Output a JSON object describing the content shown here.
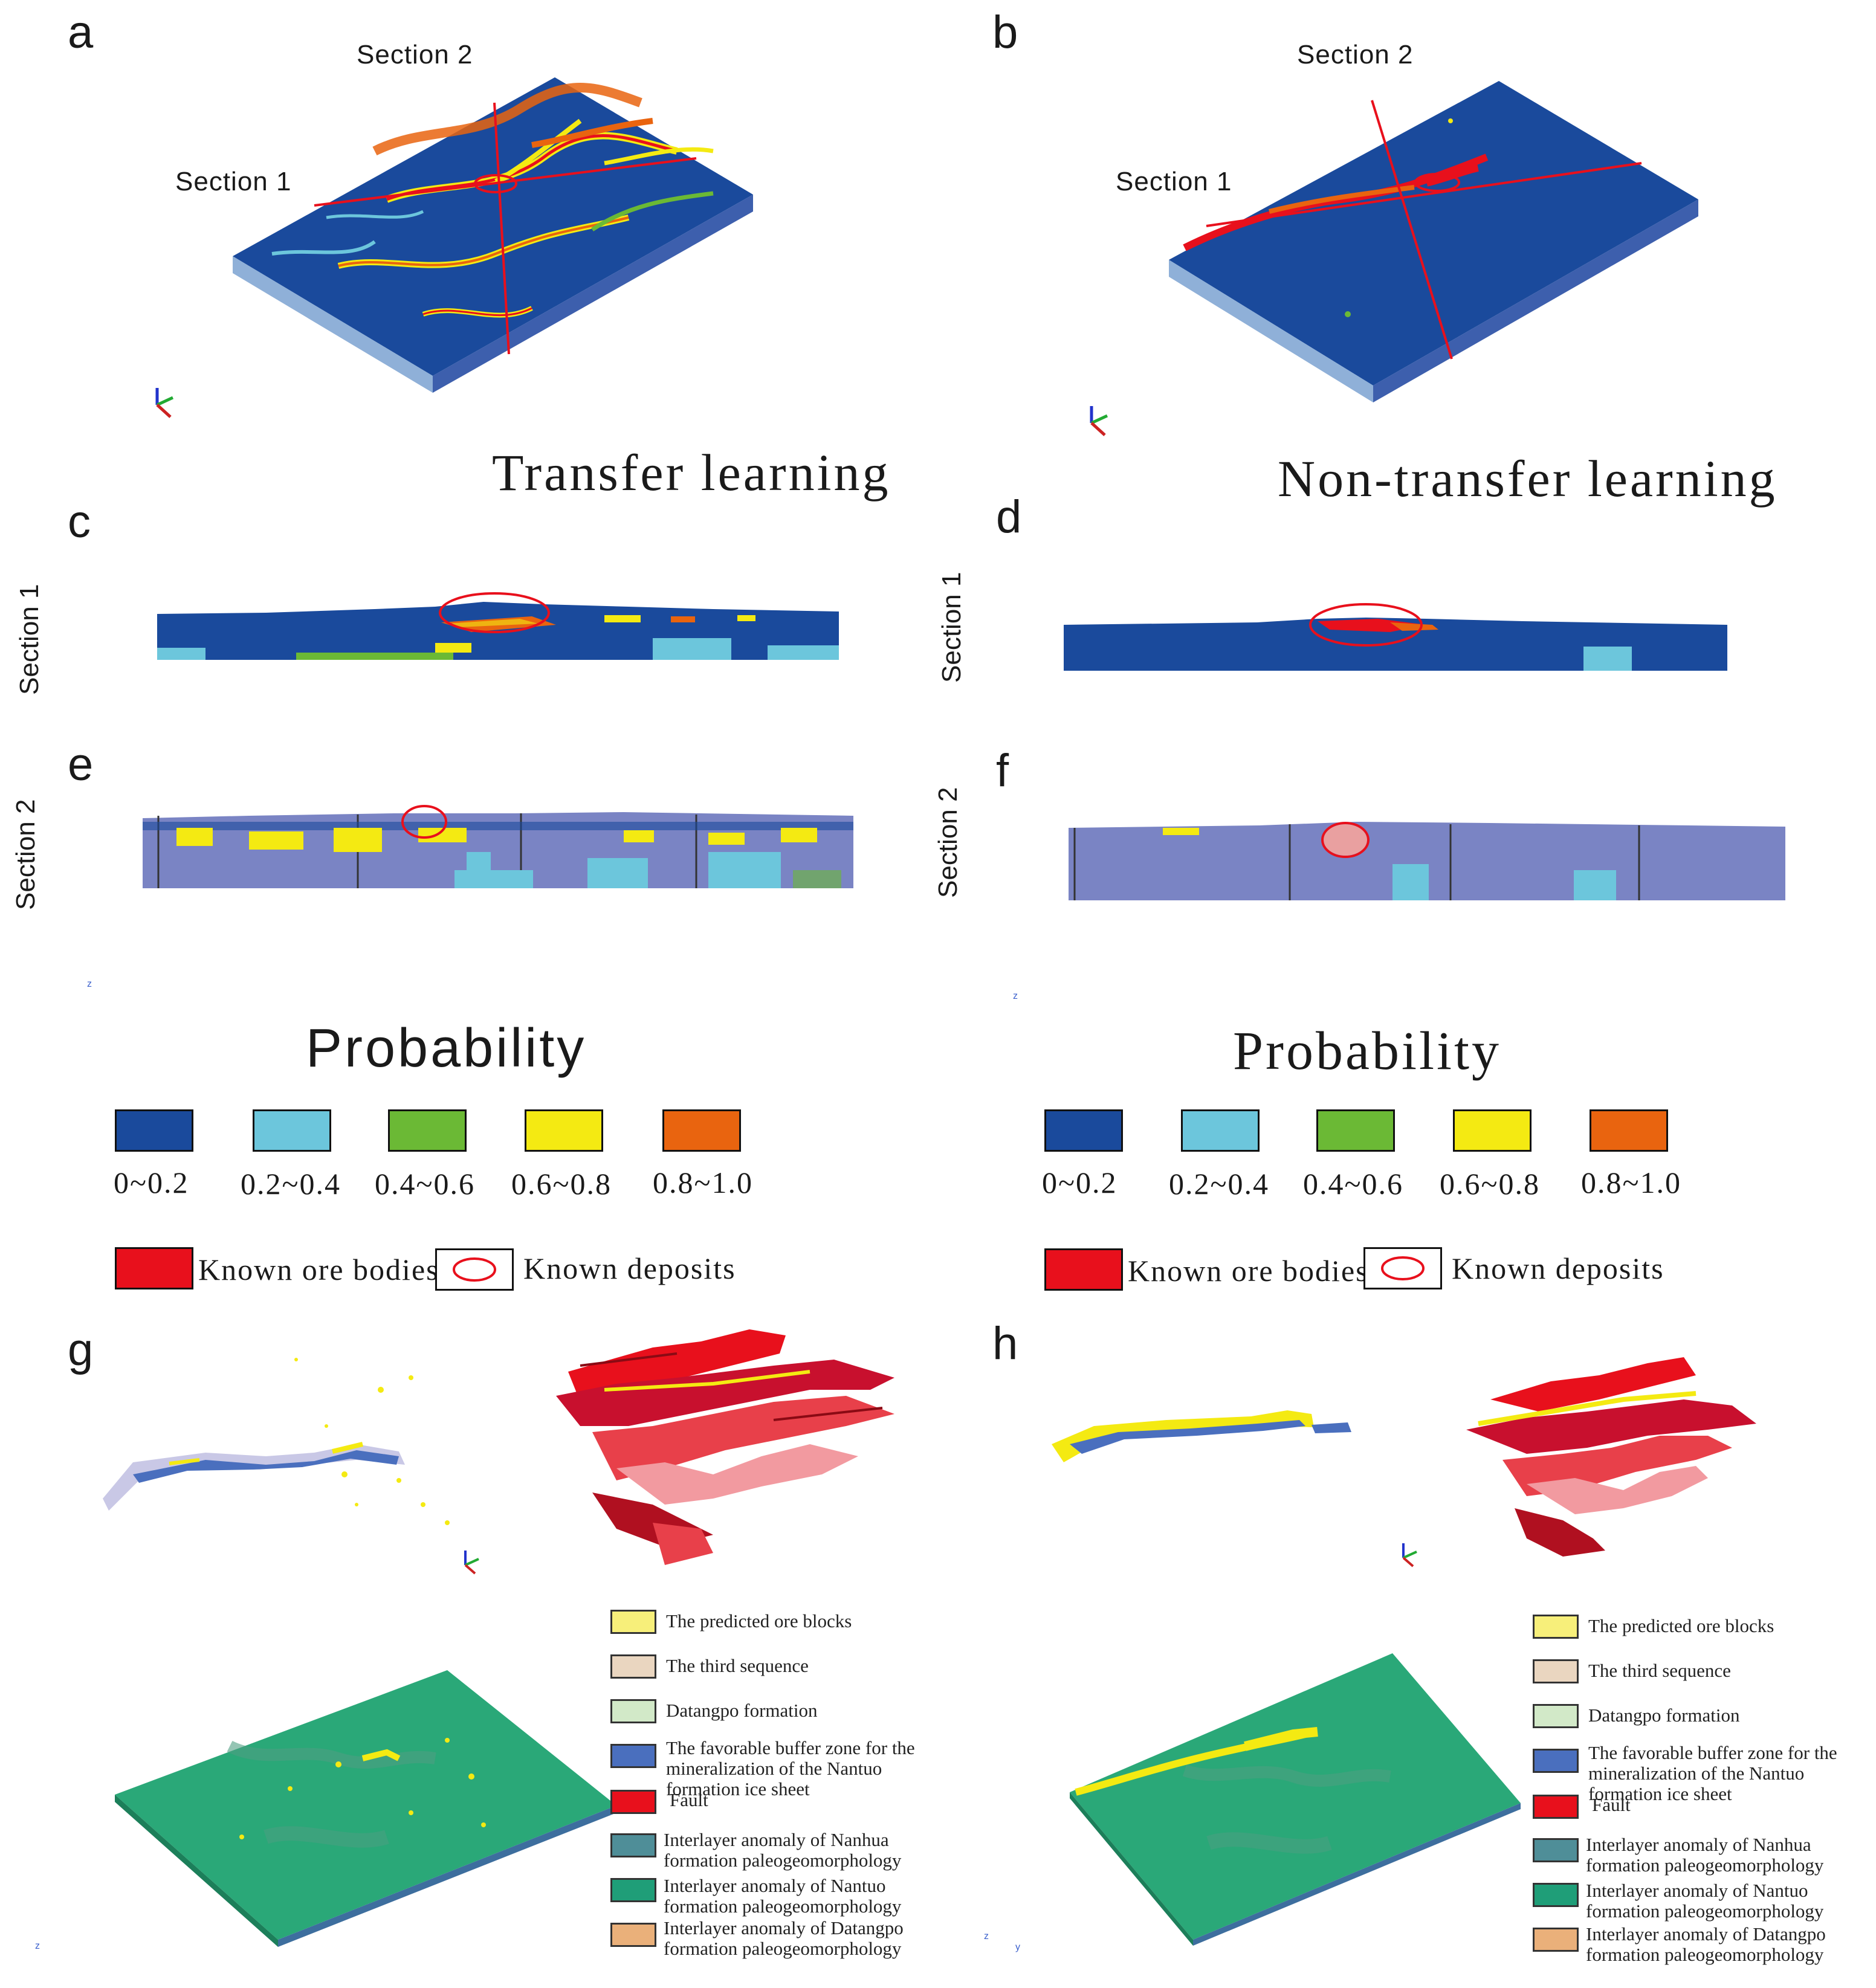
{
  "panels": {
    "a": "a",
    "b": "b",
    "c": "c",
    "d": "d",
    "e": "e",
    "f": "f",
    "g": "g",
    "h": "h"
  },
  "sections": {
    "section1": "Section 1",
    "section2": "Section 2"
  },
  "method_titles": {
    "transfer": "Transfer learning",
    "non_transfer": "Non-transfer learning"
  },
  "probability_legend": {
    "title": "Probability",
    "classes": [
      {
        "label": "0~0.2",
        "color": "#1a4a9c"
      },
      {
        "label": "0.2~0.4",
        "color": "#6cc6dc"
      },
      {
        "label": "0.4~0.6",
        "color": "#6bb935"
      },
      {
        "label": "0.6~0.8",
        "color": "#f4ea12"
      },
      {
        "label": "0.8~1.0",
        "color": "#e9640f"
      }
    ],
    "known_ore_bodies": "Known ore bodies",
    "known_deposits": "Known deposits"
  },
  "axis_glyphs": {
    "z": "z",
    "y": "y",
    "x": "x"
  },
  "layer_legend": [
    {
      "label": "The predicted ore blocks",
      "color": "#f7ef7a"
    },
    {
      "label": "The third sequence",
      "color": "#ead6c0"
    },
    {
      "label": "Datangpo formation",
      "color": "#d2e9c8"
    },
    {
      "label": "The favorable buffer zone for the mineralization of the Nantuo formation ice sheet",
      "color": "#4a6fbe"
    },
    {
      "label": "Fault",
      "color": "#e8101c"
    },
    {
      "label": "Interlayer anomaly of Nanhua formation paleogeomorphology",
      "color": "#4f8e98"
    },
    {
      "label": "Interlayer anomaly of Nantuo formation paleogeomorphology",
      "color": "#1f9e78"
    },
    {
      "label": "Interlayer anomaly of Datangpo formation paleogeomorphology",
      "color": "#eab07a"
    }
  ],
  "colors": {
    "deep_blue": "#1a4a9c",
    "light_blue": "#6cc6dc",
    "slate": "#7a84c4",
    "red": "#e8101c",
    "terrain_green": "#2aa878"
  }
}
